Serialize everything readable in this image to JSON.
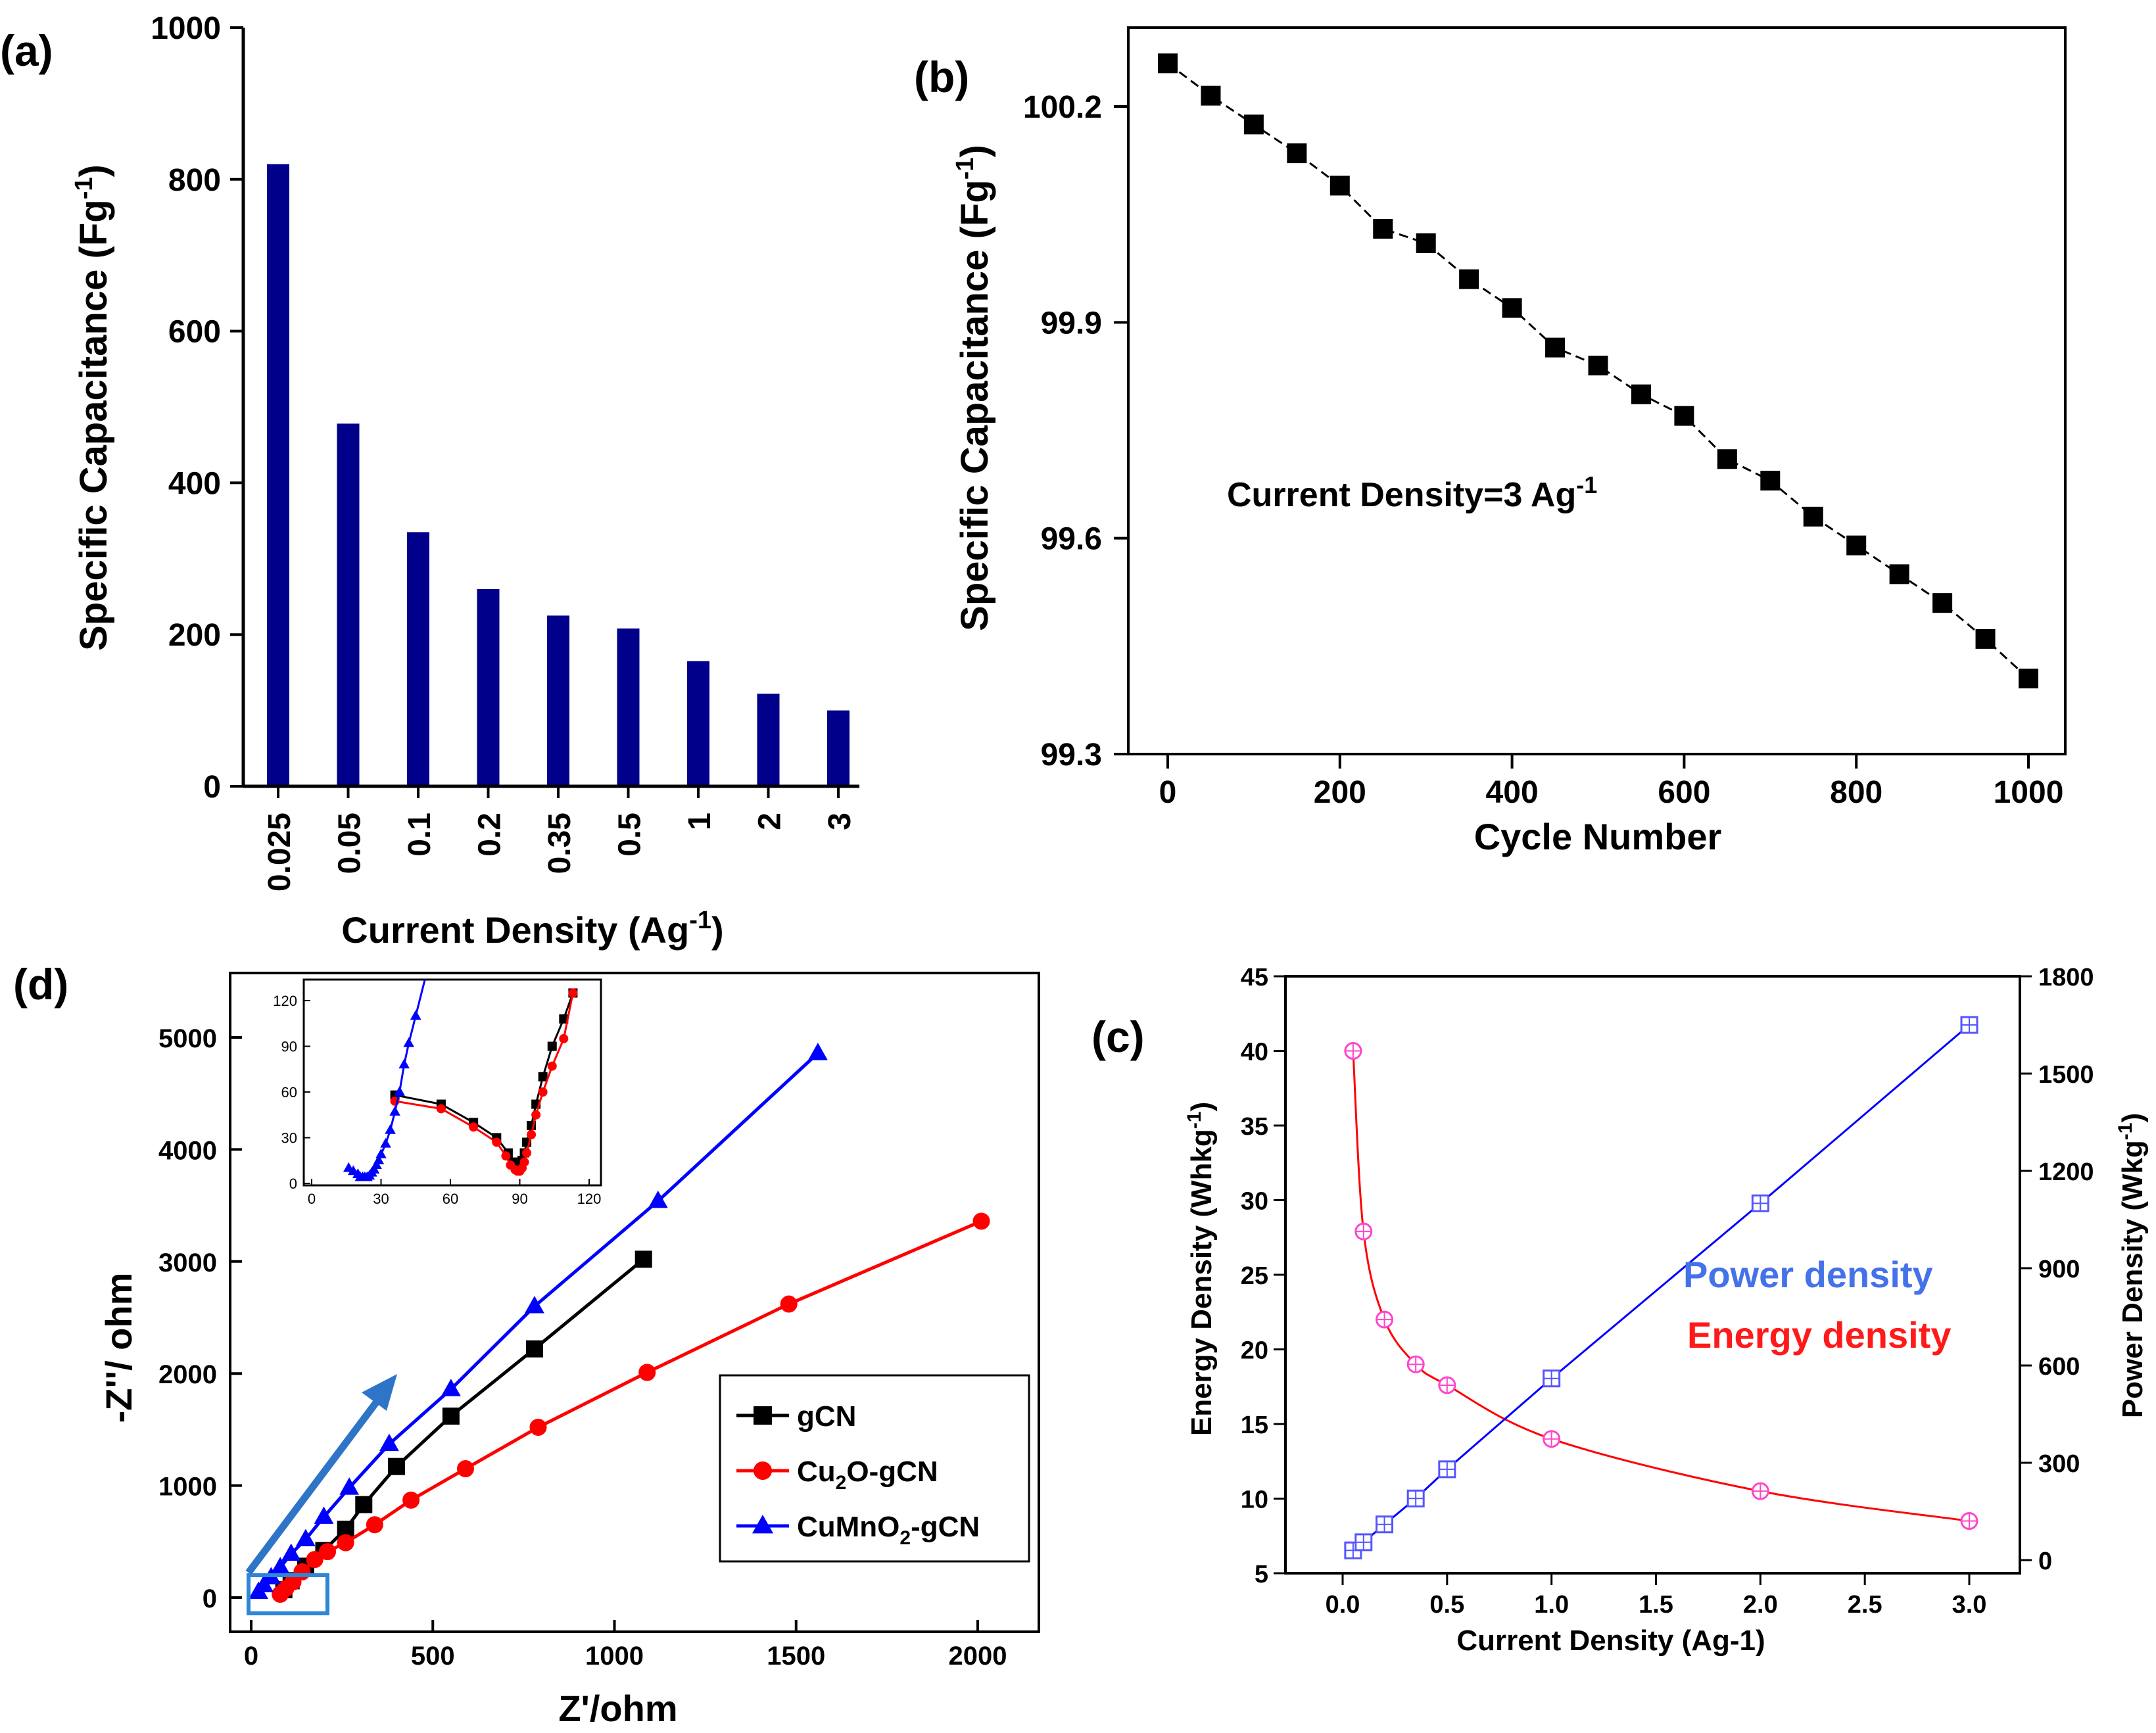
{
  "chart_data": [
    {
      "id": "a",
      "panel_label": "(a)",
      "type": "bar",
      "categories": [
        "0.025",
        "0.05",
        "0.1",
        "0.2",
        "0.35",
        "0.5",
        "1",
        "2",
        "3"
      ],
      "values": [
        820,
        478,
        335,
        260,
        225,
        208,
        165,
        122,
        100
      ],
      "xlabel": "Current Density (Ag",
      "xlabel_sup": "-1",
      "xlabel_end": ")",
      "ylabel": "Specific Capacitance (Fg",
      "ylabel_sup": "-1",
      "ylabel_end": ")",
      "yticks": [
        "0",
        "200",
        "400",
        "600",
        "800",
        "1000"
      ],
      "ylim": [
        0,
        1000
      ],
      "bar_color": "#00008b"
    },
    {
      "id": "b",
      "panel_label": "(b)",
      "type": "line",
      "x": [
        0,
        50,
        100,
        150,
        200,
        250,
        300,
        350,
        400,
        450,
        500,
        550,
        600,
        650,
        700,
        750,
        800,
        850,
        900,
        950,
        1000
      ],
      "y": [
        100.26,
        100.215,
        100.175,
        100.135,
        100.09,
        100.03,
        100.01,
        99.96,
        99.92,
        99.865,
        99.84,
        99.8,
        99.77,
        99.71,
        99.68,
        99.63,
        99.59,
        99.55,
        99.51,
        99.46,
        99.405
      ],
      "xlabel": "Cycle Number",
      "ylabel": "Specific Capacitance (Fg",
      "ylabel_sup": "-1",
      "ylabel_end": ")",
      "xticks": [
        "0",
        "200",
        "400",
        "600",
        "800",
        "1000"
      ],
      "yticks": [
        "99.3",
        "99.6",
        "99.9",
        "100.2"
      ],
      "xlim": [
        -40,
        1040
      ],
      "ylim": [
        99.3,
        100.31
      ],
      "annotation": "Current Density",
      "annotation_eq": "=",
      "annotation_value": "3 Ag",
      "annotation_sup": "-1",
      "marker_color": "#000000"
    },
    {
      "id": "d",
      "panel_label": "(d)",
      "type": "line",
      "xlabel": "Z'/ohm",
      "ylabel": "-Z''/ ohm",
      "xticks": [
        "0",
        "500",
        "1000",
        "1500",
        "2000"
      ],
      "yticks": [
        "0",
        "1000",
        "2000",
        "3000",
        "4000",
        "5000"
      ],
      "xlim": [
        -60,
        2250
      ],
      "ylim": [
        -250,
        5500
      ],
      "series": [
        {
          "name": "gCN",
          "label_parts": [
            "gCN"
          ],
          "color": "#000000",
          "marker": "square",
          "x": [
            90,
            110,
            150,
            200,
            260,
            310,
            400,
            550,
            780,
            1080
          ],
          "y": [
            70,
            150,
            280,
            420,
            610,
            830,
            1170,
            1620,
            2220,
            3020
          ]
        },
        {
          "name": "Cu2O-gCN",
          "label_parts": [
            "Cu",
            "2",
            "O-gCN"
          ],
          "color": "#ff0000",
          "marker": "circle",
          "x": [
            80,
            95,
            115,
            140,
            175,
            210,
            260,
            340,
            440,
            590,
            790,
            1090,
            1480,
            2010
          ],
          "y": [
            30,
            80,
            140,
            230,
            340,
            410,
            490,
            650,
            870,
            1150,
            1520,
            2010,
            2620,
            3360
          ]
        },
        {
          "name": "CuMnO2-gCN",
          "label_parts": [
            "CuMnO",
            "2",
            "-gCN"
          ],
          "color": "#0000ff",
          "marker": "triangle",
          "x": [
            20,
            35,
            55,
            80,
            110,
            150,
            200,
            270,
            380,
            550,
            780,
            1120,
            1560
          ],
          "y": [
            50,
            110,
            180,
            270,
            390,
            520,
            720,
            980,
            1370,
            1860,
            2600,
            3540,
            4860
          ]
        }
      ],
      "inset": {
        "xticks": [
          "0",
          "30",
          "60",
          "90",
          "120"
        ],
        "yticks": [
          "0",
          "30",
          "60",
          "90",
          "120"
        ],
        "xlim": [
          0,
          125
        ],
        "ylim": [
          0,
          130
        ],
        "series": [
          {
            "name": "gCN",
            "color": "#000000",
            "marker": "square",
            "x": [
              36,
              56,
              70,
              80,
              85,
              87,
              89,
              91,
              92,
              93,
              95,
              97,
              100,
              104,
              109,
              113
            ],
            "y": [
              58,
              52,
              40,
              30,
              20,
              14,
              12,
              15,
              20,
              27,
              38,
              52,
              70,
              90,
              108,
              125
            ]
          },
          {
            "name": "Cu2O-gCN",
            "color": "#ff0000",
            "marker": "circle",
            "x": [
              36,
              56,
              70,
              80,
              84,
              86,
              88,
              89,
              90,
              91,
              92,
              93,
              95,
              97,
              100,
              104,
              109,
              113
            ],
            "y": [
              54,
              49,
              37,
              27,
              18,
              12,
              9,
              8,
              8,
              10,
              14,
              20,
              32,
              45,
              60,
              77,
              95,
              125
            ]
          },
          {
            "name": "CuMnO2-gCN",
            "color": "#0000ff",
            "marker": "triangle",
            "x": [
              16,
              18,
              20,
              21,
              22,
              23,
              24,
              25,
              26,
              27,
              28,
              29,
              30,
              32,
              34,
              36,
              38,
              40,
              42,
              45,
              50
            ],
            "y": [
              10,
              8,
              6,
              4,
              4,
              4,
              4,
              5,
              7,
              9,
              12,
              15,
              19,
              26,
              35,
              47,
              60,
              78,
              92,
              110,
              140
            ]
          }
        ]
      }
    },
    {
      "id": "c",
      "panel_label": "(c)",
      "type": "line",
      "xlabel": "Current Density (Ag-1)",
      "ylabel_left": "Energy Density (Whkg",
      "ylabel_left_sup": "-1",
      "ylabel_left_end": ")",
      "ylabel_right": "Power Density (Wkg",
      "ylabel_right_sup": "-1",
      "ylabel_right_end": ")",
      "xticks": [
        "0.0",
        "0.5",
        "1.0",
        "1.5",
        "2.0",
        "2.5",
        "3.0"
      ],
      "yticks_left": [
        "5",
        "10",
        "15",
        "20",
        "25",
        "30",
        "35",
        "40",
        "45"
      ],
      "yticks_right": [
        "0",
        "300",
        "600",
        "900",
        "1200",
        "1500",
        "1800"
      ],
      "xlim": [
        -0.3,
        3.15
      ],
      "ylim_left": [
        5,
        45
      ],
      "ylim_right": [
        0,
        1800
      ],
      "series": [
        {
          "name": "Energy density",
          "color": "#ff0000",
          "marker_color": "#ff44cc",
          "axis": "left",
          "x": [
            0.05,
            0.1,
            0.2,
            0.35,
            0.5,
            1,
            2,
            3
          ],
          "y": [
            40,
            27.9,
            22,
            19,
            17.6,
            14,
            10.5,
            8.5
          ]
        },
        {
          "name": "Power density",
          "color": "#0000ff",
          "marker_color": "#5555ff",
          "axis": "right",
          "x": [
            0.05,
            0.1,
            0.2,
            0.35,
            0.5,
            1,
            2,
            3
          ],
          "y": [
            30,
            55,
            110,
            190,
            280,
            560,
            1100,
            1650
          ]
        }
      ],
      "legend_power": "Power density",
      "legend_energy": "Energy density",
      "legend_power_color": "#4472e8",
      "legend_energy_color": "#ff1a1a"
    }
  ]
}
